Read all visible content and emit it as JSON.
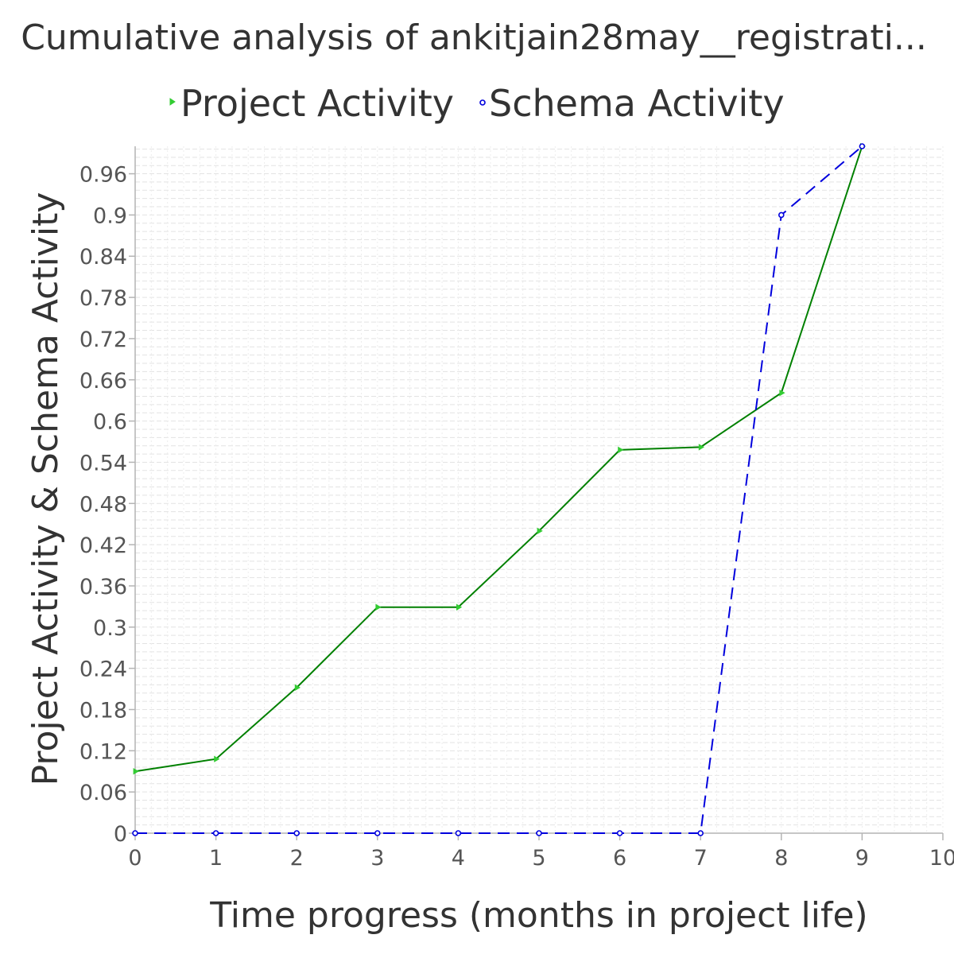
{
  "chart_data": {
    "type": "line",
    "title": "Cumulative analysis of ankitjain28may__registrati...",
    "xlabel": "Time progress (months in project life)",
    "ylabel": "Project Activity & Schema Activity",
    "xlim": [
      0,
      10
    ],
    "ylim": [
      0,
      1.0
    ],
    "x_ticks": [
      "0",
      "1",
      "2",
      "3",
      "4",
      "5",
      "6",
      "7",
      "8",
      "9",
      "10"
    ],
    "y_ticks": [
      "0",
      "0.06",
      "0.12",
      "0.18",
      "0.24",
      "0.3",
      "0.36",
      "0.42",
      "0.48",
      "0.54",
      "0.6",
      "0.66",
      "0.72",
      "0.78",
      "0.84",
      "0.9",
      "0.96"
    ],
    "grid": true,
    "legend_position": "top-center",
    "x": [
      0,
      1,
      2,
      3,
      4,
      5,
      6,
      7,
      8,
      9
    ],
    "series": [
      {
        "name": "Project Activity",
        "color": "#008000",
        "marker_color": "#33cc33",
        "marker": "triangle-right",
        "line_style": "solid",
        "values": [
          0.09,
          0.108,
          0.212,
          0.329,
          0.329,
          0.44,
          0.558,
          0.562,
          0.641,
          1.0
        ]
      },
      {
        "name": "Schema Activity",
        "color": "#0000dd",
        "marker_color": "#0000dd",
        "marker": "circle",
        "line_style": "dashed",
        "values": [
          0,
          0,
          0,
          0,
          0,
          0,
          0,
          0,
          0.9,
          1.0
        ]
      }
    ]
  }
}
